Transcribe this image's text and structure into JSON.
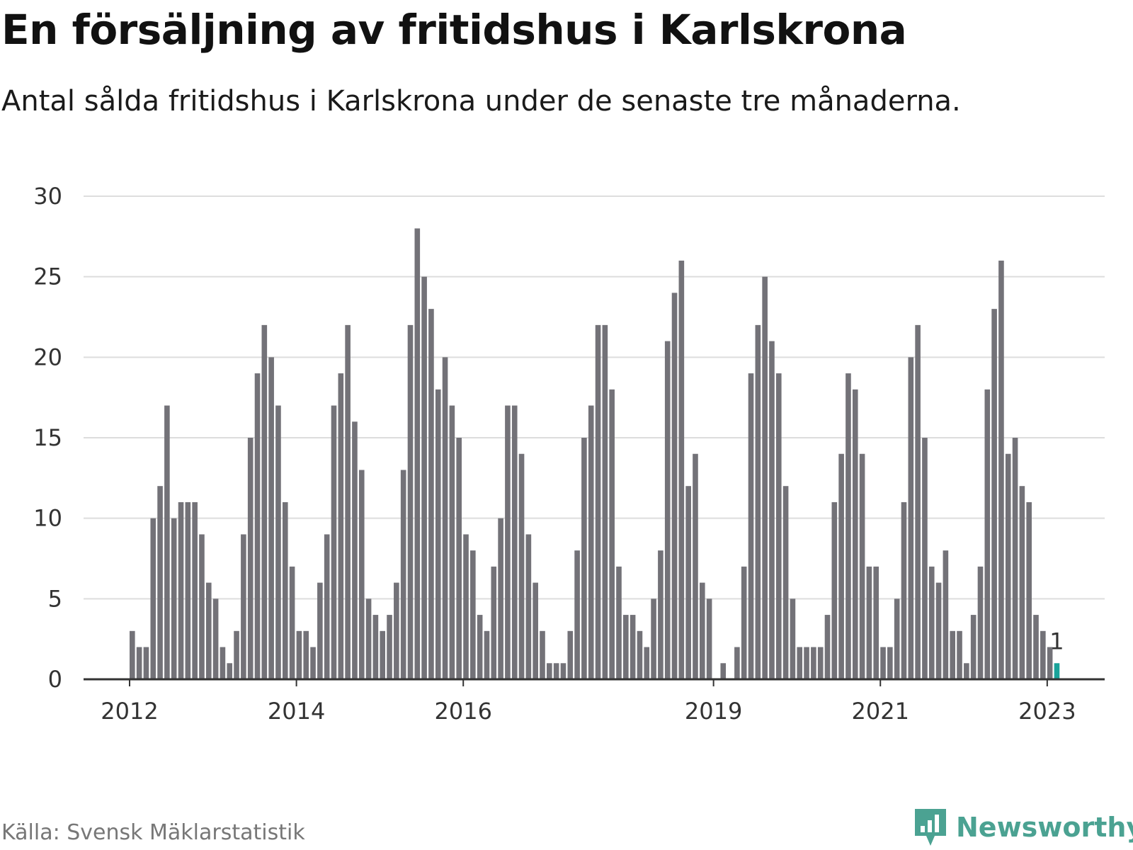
{
  "header": {
    "title": "En försäljning av fritidshus i Karlskrona",
    "subtitle": "Antal sålda fritidshus i Karlskrona under de senaste tre månaderna."
  },
  "footer": {
    "source": "Källa: Svensk Mäklarstatistik",
    "logo_text": "Newsworthy"
  },
  "colors": {
    "bar": "#737278",
    "highlight": "#1aa39a",
    "grid": "#dddddd",
    "axis": "#333333",
    "logo": "#4ba292"
  },
  "chart_data": {
    "type": "bar",
    "x_start": "2012-01",
    "interval": "month",
    "ylim": [
      0,
      30
    ],
    "yticks": [
      0,
      5,
      10,
      15,
      20,
      25,
      30
    ],
    "xticks": [
      "2012",
      "2014",
      "2016",
      "2019",
      "2021",
      "2023"
    ],
    "grid": true,
    "highlight_index": 133,
    "highlight_label": "1",
    "values": [
      3,
      2,
      2,
      10,
      12,
      17,
      10,
      11,
      11,
      11,
      9,
      6,
      5,
      2,
      1,
      3,
      9,
      15,
      19,
      22,
      20,
      17,
      11,
      7,
      3,
      3,
      2,
      6,
      9,
      17,
      19,
      22,
      16,
      13,
      5,
      4,
      3,
      4,
      6,
      13,
      22,
      28,
      25,
      23,
      18,
      20,
      17,
      15,
      9,
      8,
      4,
      3,
      7,
      10,
      17,
      17,
      14,
      9,
      6,
      3,
      1,
      1,
      1,
      3,
      8,
      15,
      17,
      22,
      22,
      18,
      7,
      4,
      4,
      3,
      2,
      5,
      8,
      21,
      24,
      26,
      12,
      14,
      6,
      5,
      0,
      1,
      0,
      2,
      7,
      19,
      22,
      25,
      21,
      19,
      12,
      5,
      2,
      2,
      2,
      2,
      4,
      11,
      14,
      19,
      18,
      14,
      7,
      7,
      2,
      2,
      5,
      11,
      20,
      22,
      15,
      7,
      6,
      8,
      3,
      3,
      1,
      4,
      7,
      18,
      23,
      26,
      14,
      15,
      12,
      11,
      4,
      3,
      2,
      1
    ]
  }
}
